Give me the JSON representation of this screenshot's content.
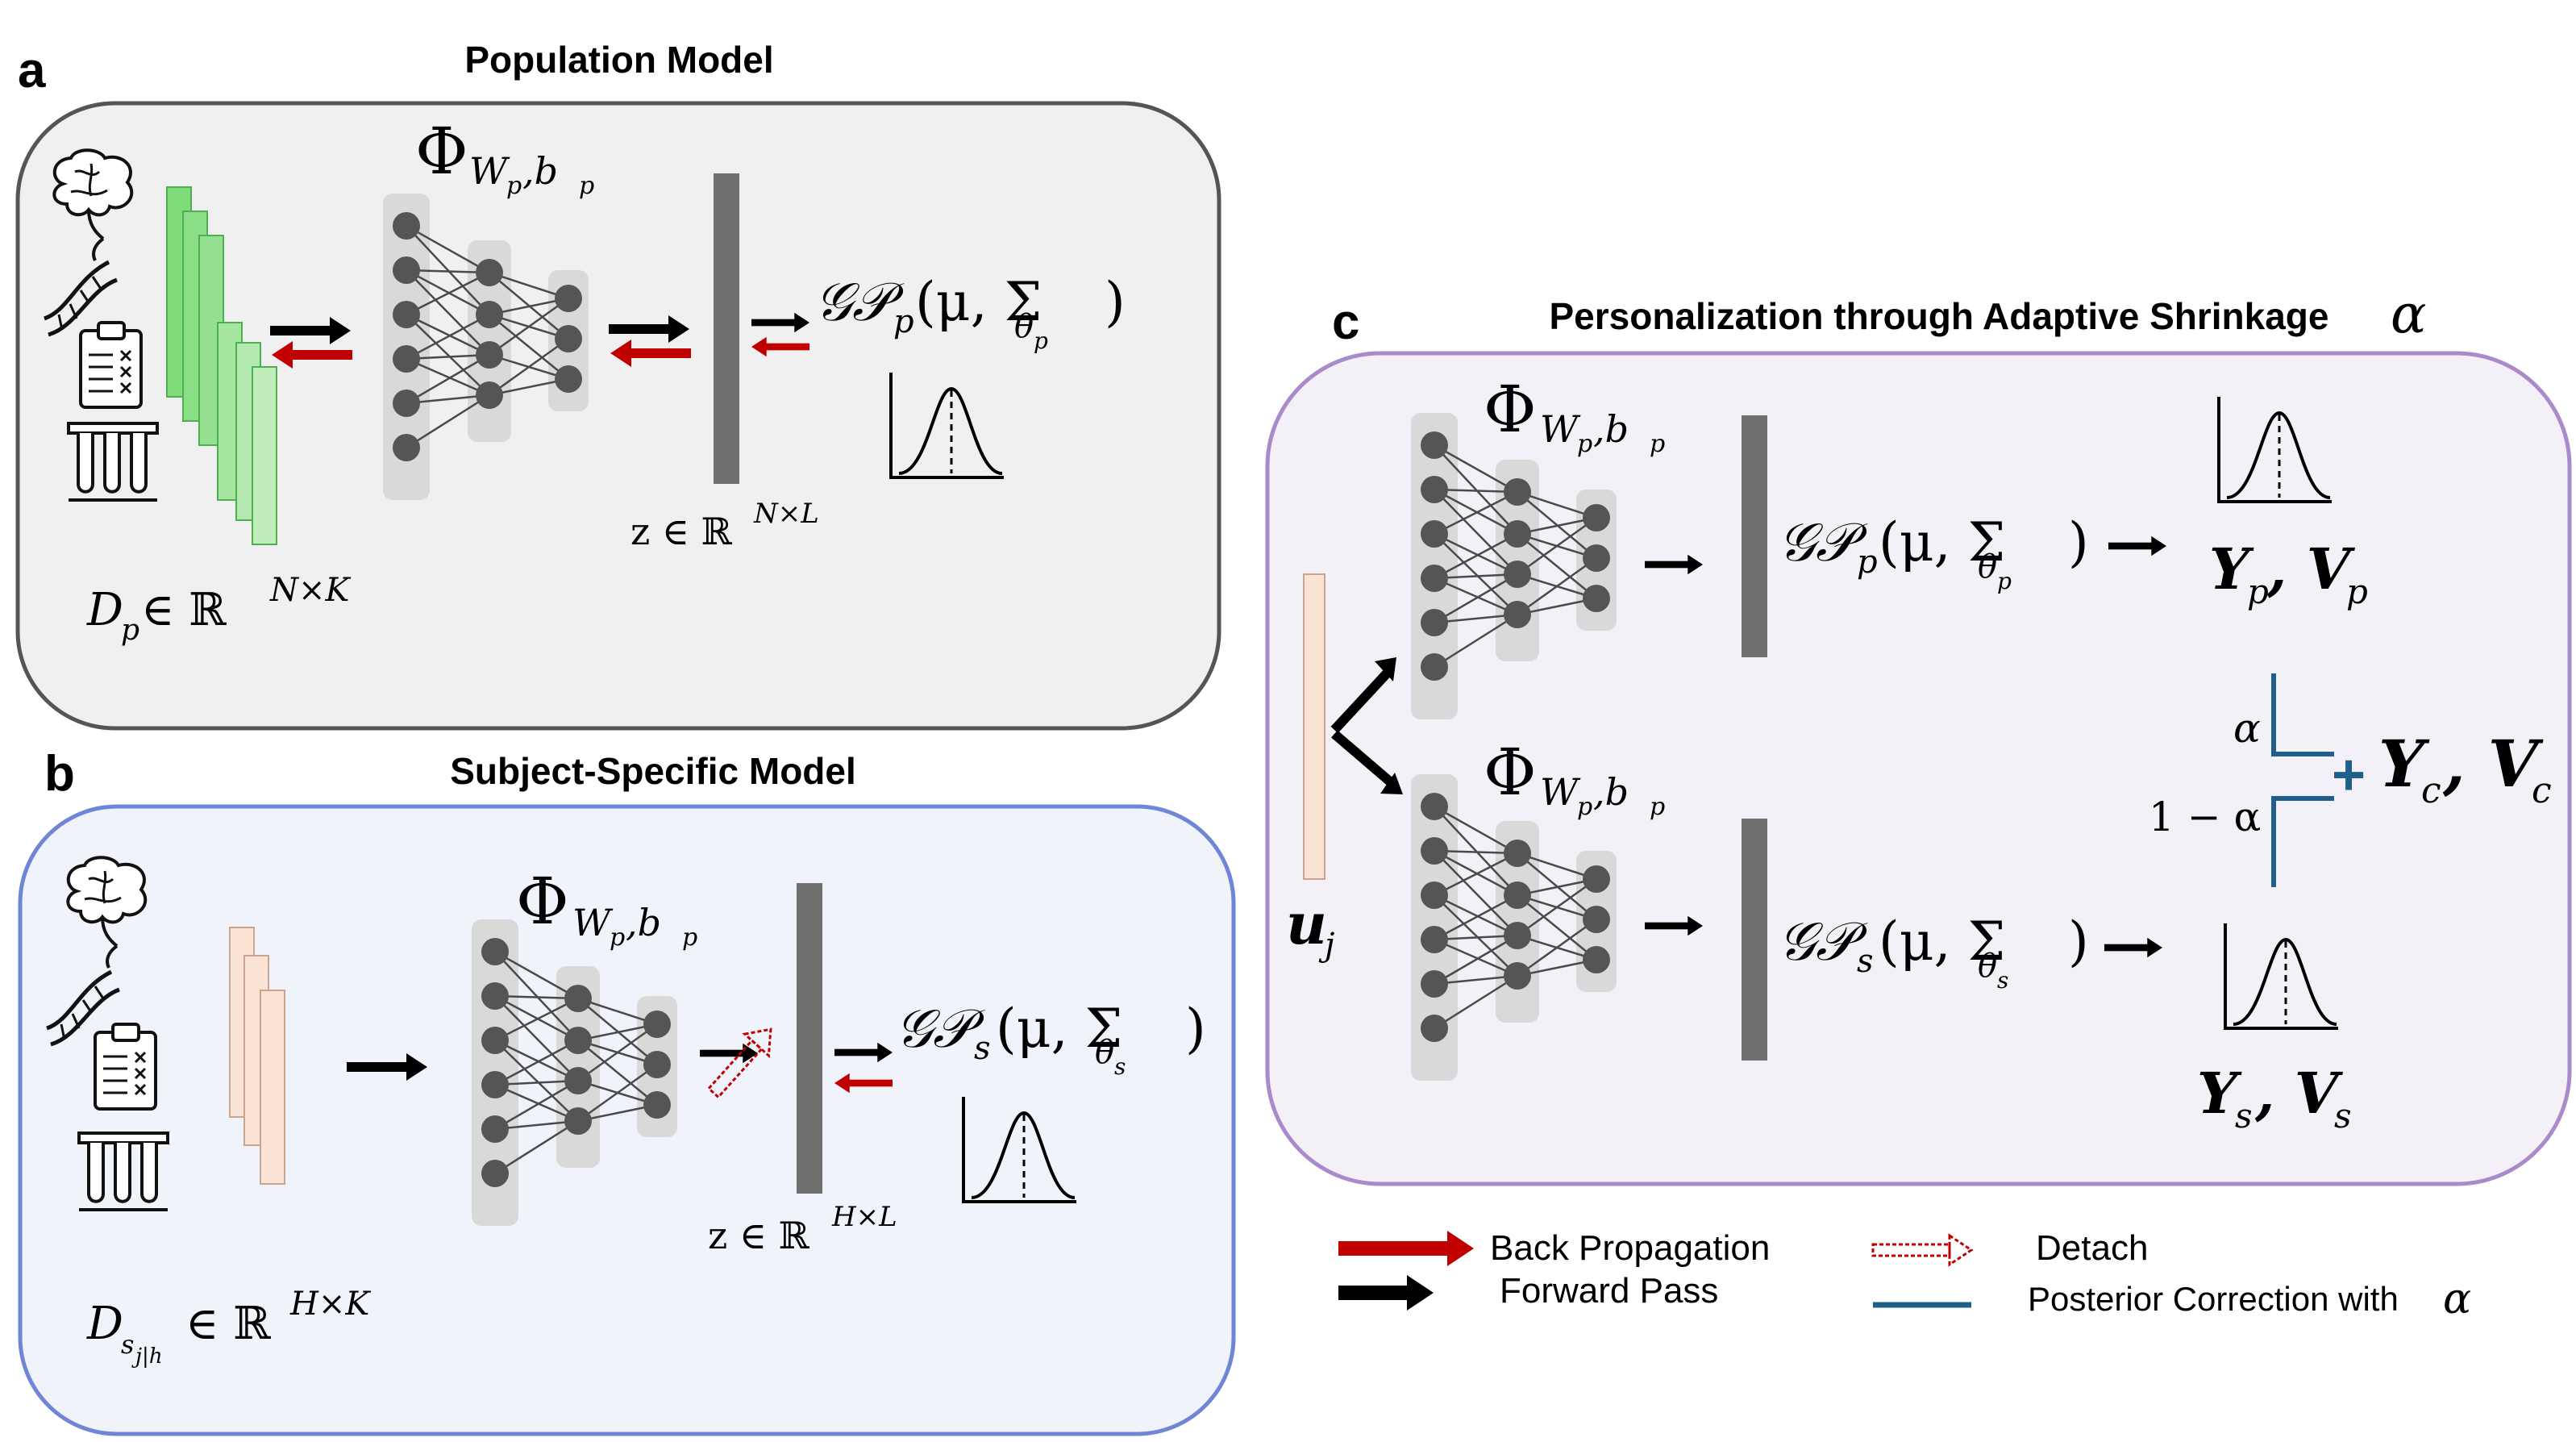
{
  "panels": {
    "a": {
      "letter": "a",
      "title": "Population Model"
    },
    "b": {
      "letter": "b",
      "title": "Subject-Specific Model"
    },
    "c": {
      "letter": "c",
      "title": "Personalization through Adaptive Shrinkage",
      "title_symbol": "α"
    }
  },
  "math": {
    "phi": "Φ",
    "phi_sub": "W",
    "phi_sub2": "p",
    "phi_sub3": ",b",
    "phi_sub4": "p",
    "gp_p": "𝒢𝒫",
    "gp_p_sub": "p",
    "gp_args": "(μ, Σ",
    "theta": "θ",
    "theta_p": "p",
    "theta_s": "s",
    "close": ")",
    "gp_s_sub": "s",
    "z_pop": "z ∈ ℝ",
    "z_pop_sup": "N×L",
    "d_pop": "D",
    "d_pop_sub": "p",
    "d_pop_rest": " ∈ ℝ",
    "d_pop_sup": "N×K",
    "z_subj": "z ∈ ℝ",
    "z_subj_sup": "H×L",
    "d_subj": "D",
    "d_subj_sub": "s",
    "d_subj_sub2": "j|h",
    "d_subj_rest": " ∈ ℝ",
    "d_subj_sup": "H×K",
    "u": "u",
    "u_sub": "j",
    "yp": "Y",
    "yp_sub": "p",
    "vp": ", V",
    "vp_sub": "p",
    "ys": "Y",
    "ys_sub": "s",
    "vs": ", V",
    "vs_sub": "s",
    "yc": "Y",
    "yc_sub": "c",
    "vc": ", V",
    "vc_sub": "c",
    "alpha": "α",
    "one_minus_alpha": "1 − α",
    "plus": "+"
  },
  "legend": {
    "back_prop": "Back Propagation",
    "forward": "Forward Pass",
    "detach": "Detach",
    "posterior": "Posterior Correction with",
    "posterior_symbol": "α"
  },
  "colors": {
    "pop_box_fill": "#f0f0f0",
    "subj_box_border": "#6f86d6",
    "subj_box_fill": "#f1f3fb",
    "pers_box_border": "#a98bcc",
    "pers_box_fill": "#f4f0f8",
    "back_prop": "#c00000",
    "forward": "#000000",
    "posterior": "#1f5f8b",
    "green_data": "#9fe39b",
    "peach_data": "#fbe3d6"
  }
}
